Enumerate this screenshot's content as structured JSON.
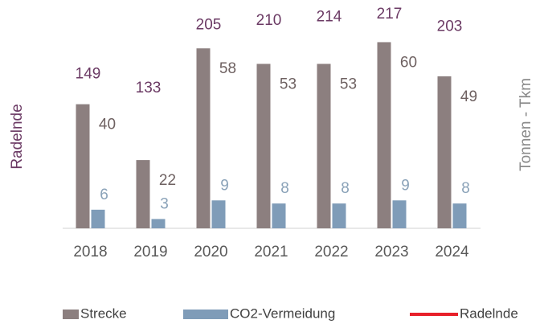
{
  "chart_data": {
    "type": "bar-line",
    "categories": [
      "2018",
      "2019",
      "2020",
      "2021",
      "2022",
      "2023",
      "2024"
    ],
    "y_label": "Radelnde",
    "y2_label": "Tonnen - Tkm",
    "ylim": [
      0,
      250
    ],
    "y2lim": [
      0,
      71
    ],
    "series": [
      {
        "name": "Strecke",
        "type": "bar",
        "axis": "y2",
        "color": "#8c7f7f",
        "values": [
          40,
          22,
          58,
          53,
          53,
          60,
          49
        ]
      },
      {
        "name": "CO2-Vermeidung",
        "type": "bar",
        "axis": "y2",
        "color": "#7f9cb8",
        "values": [
          6,
          3,
          9,
          8,
          8,
          9,
          8
        ]
      },
      {
        "name": "Radelnde",
        "type": "line",
        "axis": "y",
        "color": "#e8202a",
        "values": [
          149,
          133,
          205,
          210,
          214,
          217,
          203
        ]
      }
    ],
    "legend": "bottom"
  }
}
